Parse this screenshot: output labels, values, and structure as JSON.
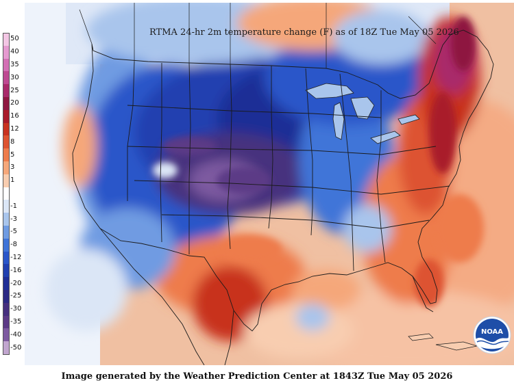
{
  "map": {
    "title": "RTMA 24-hr 2m temperature change (F) as of 18Z Tue May 05 2026",
    "footer": "Image generated by the Weather Prediction Center at 1843Z Tue May 05 2026",
    "logo_text": "NOAA",
    "legend": [
      {
        "label": "50",
        "color": "#f3c6e4"
      },
      {
        "label": "40",
        "color": "#e59ad0"
      },
      {
        "label": "35",
        "color": "#d370b4"
      },
      {
        "label": "30",
        "color": "#be4a92"
      },
      {
        "label": "25",
        "color": "#a92a6a"
      },
      {
        "label": "20",
        "color": "#8e1740"
      },
      {
        "label": "16",
        "color": "#a91b2a"
      },
      {
        "label": "12",
        "color": "#c8321f"
      },
      {
        "label": "8",
        "color": "#dd5330"
      },
      {
        "label": "5",
        "color": "#ee7c4c"
      },
      {
        "label": "3",
        "color": "#f5a77a"
      },
      {
        "label": "1",
        "color": "#f8cdb0"
      },
      {
        "label": "",
        "color": "#ffffff"
      },
      {
        "label": "-1",
        "color": "#dbe6f6"
      },
      {
        "label": "-3",
        "color": "#a9c5ec"
      },
      {
        "label": "-5",
        "color": "#6f9be2"
      },
      {
        "label": "-8",
        "color": "#3f74d8"
      },
      {
        "label": "-12",
        "color": "#2a56c9"
      },
      {
        "label": "-16",
        "color": "#2140b0"
      },
      {
        "label": "-20",
        "color": "#1f2f96"
      },
      {
        "label": "-25",
        "color": "#2d2a84"
      },
      {
        "label": "-30",
        "color": "#46307e"
      },
      {
        "label": "-35",
        "color": "#5c3a86"
      },
      {
        "label": "-40",
        "color": "#7d5aa0"
      },
      {
        "label": "-50",
        "color": "#c1a6cf"
      }
    ]
  }
}
